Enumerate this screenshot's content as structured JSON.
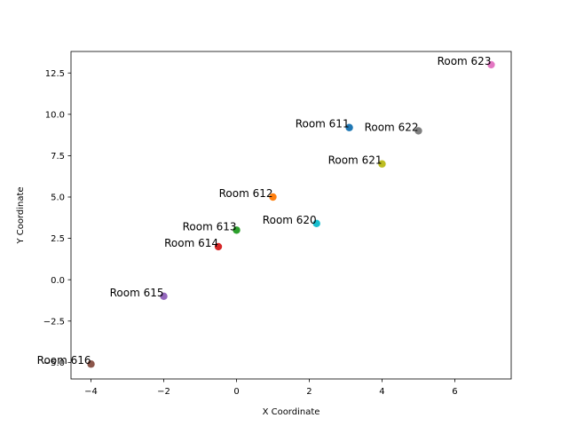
{
  "chart_data": {
    "type": "scatter",
    "title": "",
    "xlabel": "X Coordinate",
    "ylabel": "Y Coordinate",
    "xlim": [
      -4.55,
      7.55
    ],
    "ylim": [
      -6.0,
      13.8
    ],
    "xticks": [
      -4,
      -2,
      0,
      2,
      4,
      6
    ],
    "yticks": [
      -5.0,
      -2.5,
      0.0,
      2.5,
      5.0,
      7.5,
      10.0,
      12.5
    ],
    "grid": false,
    "points": [
      {
        "label": "Room 611",
        "x": 3.1,
        "y": 9.2,
        "color": "#1f77b4"
      },
      {
        "label": "Room 612",
        "x": 1.0,
        "y": 5.0,
        "color": "#ff7f0e"
      },
      {
        "label": "Room 613",
        "x": 0.0,
        "y": 3.0,
        "color": "#2ca02c"
      },
      {
        "label": "Room 614",
        "x": -0.5,
        "y": 2.0,
        "color": "#d62728"
      },
      {
        "label": "Room 615",
        "x": -2.0,
        "y": -1.0,
        "color": "#9467bd"
      },
      {
        "label": "Room 616",
        "x": -4.0,
        "y": -5.1,
        "color": "#8c564b"
      },
      {
        "label": "Room 623",
        "x": 7.0,
        "y": 13.0,
        "color": "#e377c2"
      },
      {
        "label": "Room 622",
        "x": 5.0,
        "y": 9.0,
        "color": "#7f7f7f"
      },
      {
        "label": "Room 621",
        "x": 4.0,
        "y": 7.0,
        "color": "#bcbd22"
      },
      {
        "label": "Room 620",
        "x": 2.2,
        "y": 3.4,
        "color": "#17becf"
      }
    ]
  }
}
